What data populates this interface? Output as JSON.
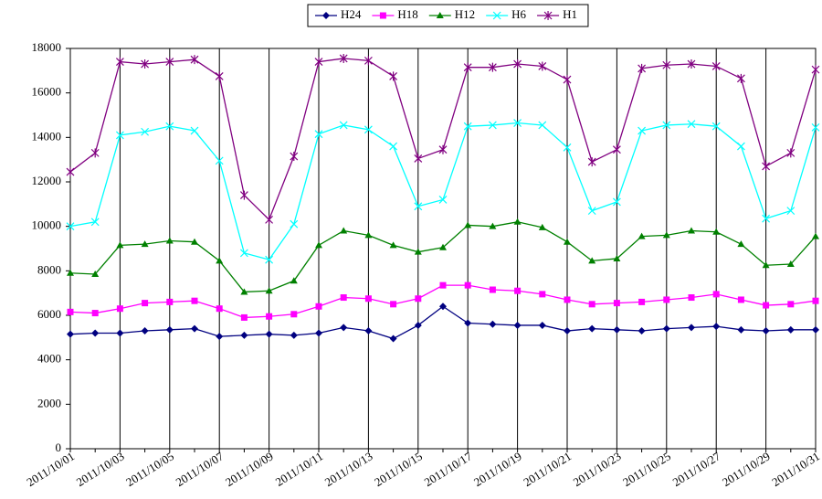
{
  "chart_data": {
    "type": "line",
    "categories": [
      "2011/10/01",
      null,
      "2011/10/03",
      null,
      "2011/10/05",
      null,
      "2011/10/07",
      null,
      "2011/10/09",
      null,
      "2011/10/11",
      null,
      "2011/10/13",
      null,
      "2011/10/15",
      null,
      "2011/10/17",
      null,
      "2011/10/19",
      null,
      "2011/10/21",
      null,
      "2011/10/23",
      null,
      "2011/10/25",
      null,
      "2011/10/27",
      null,
      "2011/10/29",
      null,
      "2011/10/31"
    ],
    "series": [
      {
        "name": "H24",
        "color": "#000080",
        "marker": "diamond",
        "values": [
          5150,
          5200,
          5200,
          5300,
          5350,
          5400,
          5050,
          5100,
          5150,
          5100,
          5200,
          5450,
          5300,
          4950,
          5550,
          6400,
          5650,
          5600,
          5550,
          5550,
          5300,
          5400,
          5350,
          5300,
          5400,
          5450,
          5500,
          5350,
          5300,
          5350,
          5350
        ]
      },
      {
        "name": "H18",
        "color": "#ff00ff",
        "marker": "square",
        "values": [
          6150,
          6100,
          6300,
          6550,
          6600,
          6650,
          6300,
          5900,
          5950,
          6050,
          6400,
          6800,
          6750,
          6500,
          6750,
          7350,
          7350,
          7150,
          7100,
          6950,
          6700,
          6500,
          6550,
          6600,
          6700,
          6800,
          6950,
          6700,
          6450,
          6500,
          6650
        ]
      },
      {
        "name": "H12",
        "color": "#008000",
        "marker": "triangle",
        "values": [
          7900,
          7850,
          9150,
          9200,
          9350,
          9300,
          8450,
          7050,
          7100,
          7550,
          9150,
          9800,
          9600,
          9150,
          8850,
          9050,
          10050,
          10000,
          10200,
          9950,
          9300,
          8450,
          8550,
          9550,
          9600,
          9800,
          9750,
          9200,
          8250,
          8300,
          9550
        ]
      },
      {
        "name": "H6",
        "color": "#00ffff",
        "marker": "x",
        "values": [
          10000,
          10200,
          14100,
          14250,
          14500,
          14300,
          12950,
          8800,
          8500,
          10100,
          14150,
          14550,
          14350,
          13600,
          10900,
          11200,
          14500,
          14550,
          14650,
          14550,
          13550,
          10700,
          11100,
          14300,
          14550,
          14600,
          14500,
          13600,
          10350,
          10700,
          14450
        ]
      },
      {
        "name": "H1",
        "color": "#800080",
        "marker": "star",
        "values": [
          12450,
          13300,
          17400,
          17300,
          17400,
          17500,
          16750,
          11400,
          10300,
          13150,
          17400,
          17550,
          17450,
          16750,
          13050,
          13450,
          17150,
          17150,
          17300,
          17200,
          16600,
          12900,
          13450,
          17100,
          17250,
          17300,
          17200,
          16650,
          12700,
          13300,
          17050
        ]
      }
    ],
    "ylim": [
      0,
      18000
    ],
    "yticks": [
      0,
      2000,
      4000,
      6000,
      8000,
      10000,
      12000,
      14000,
      16000,
      18000
    ],
    "legend": "top",
    "grid": "x"
  }
}
